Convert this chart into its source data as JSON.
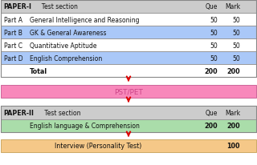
{
  "bg_color": "#ffffff",
  "paper1_header_bg": "#cccccc",
  "paper1_header_text": "PAPER-I",
  "paper1_header_sub": "  Test section",
  "paper1_col1": "Que",
  "paper1_col2": "Mark",
  "rows": [
    {
      "part": "Part A",
      "section": "General Intelligence and Reasoning",
      "que": "50",
      "mark": "50",
      "bg": "#ffffff"
    },
    {
      "part": "Part B",
      "section": "GK & General Awareness",
      "que": "50",
      "mark": "50",
      "bg": "#aac8f8"
    },
    {
      "part": "Part C",
      "section": "Quantitative Aptitude",
      "que": "50",
      "mark": "50",
      "bg": "#ffffff"
    },
    {
      "part": "Part D",
      "section": "English Comprehension",
      "que": "50",
      "mark": "50",
      "bg": "#aac8f8"
    }
  ],
  "total_label": "Total",
  "total_que": "200",
  "total_mark": "200",
  "total_bg": "#ffffff",
  "arrow_color": "#dd0000",
  "pst_bg": "#f888bb",
  "pst_text": "PST/PET",
  "pst_text_color": "#cc4488",
  "paper2_header_bg": "#cccccc",
  "paper2_header_text": "PAPER-II",
  "paper2_header_sub": " Test section",
  "paper2_col1": "Que",
  "paper2_col2": "Mark",
  "paper2_row_bg": "#aaddaa",
  "paper2_row_section": "English language & Comprehension",
  "paper2_row_que": "200",
  "paper2_row_mark": "200",
  "interview_bg": "#f5c888",
  "interview_text": "Interview (Personality Test)",
  "interview_mark": "100"
}
